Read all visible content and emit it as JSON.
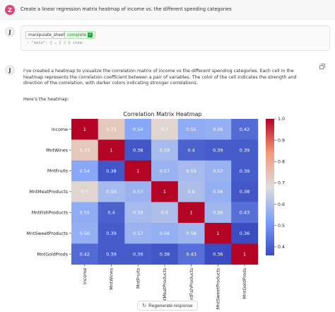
{
  "user": {
    "avatar_letter": "Z",
    "prompt": "Create a linear regression matrix heatmap of income vs. the different spending categories"
  },
  "assistant": {
    "avatar_letter": "J",
    "tool": {
      "name": "manipulate_sheet",
      "status": "complete",
      "args": "› \"data\": { … } / 1 item"
    },
    "message": "I've created a heatmap to visualize the correlation matrix of income vs the different spending categories. Each cell in the heatmap represents the correlation coefficient between a pair of variables. The color of the cell indicates the strength and direction of the correlation, with darker colors indicating stronger correlations.",
    "sub": "Here's the heatmap:"
  },
  "chart_data": {
    "type": "heatmap",
    "title": "Correlation Matrix Heatmap",
    "rows": [
      "Income",
      "MntWines",
      "MntFruits",
      "MntMeatProducts",
      "MntFishProducts",
      "MntSweetProducts",
      "MntGoldProds"
    ],
    "columns": [
      "Income",
      "MntWines",
      "MntFruits",
      "MntMeatProducts",
      "MntFishProducts",
      "MntSweetProducts",
      "MntGoldProds"
    ],
    "values": [
      [
        1,
        0.73,
        0.54,
        0.7,
        0.55,
        0.56,
        0.42
      ],
      [
        0.73,
        1,
        0.38,
        0.59,
        0.4,
        0.39,
        0.39
      ],
      [
        0.54,
        0.38,
        1,
        0.57,
        0.59,
        0.57,
        0.39
      ],
      [
        0.7,
        0.59,
        0.57,
        1,
        0.6,
        0.56,
        0.38
      ],
      [
        0.55,
        0.4,
        0.59,
        0.6,
        1,
        0.58,
        0.43
      ],
      [
        0.56,
        0.39,
        0.57,
        0.56,
        0.58,
        1,
        0.36
      ],
      [
        0.42,
        0.39,
        0.39,
        0.38,
        0.43,
        0.36,
        1
      ]
    ],
    "colorbar": {
      "min": 0.36,
      "max": 1.0,
      "ticks": [
        0.4,
        0.5,
        0.6,
        0.7,
        0.8,
        0.9,
        1.0
      ],
      "tick_labels": [
        "0.4",
        "0.5",
        "0.6",
        "0.7",
        "0.8",
        "0.9",
        "1.0"
      ]
    },
    "colormap": "coolwarm"
  },
  "footer": {
    "regenerate_label": "Regenerate response"
  }
}
